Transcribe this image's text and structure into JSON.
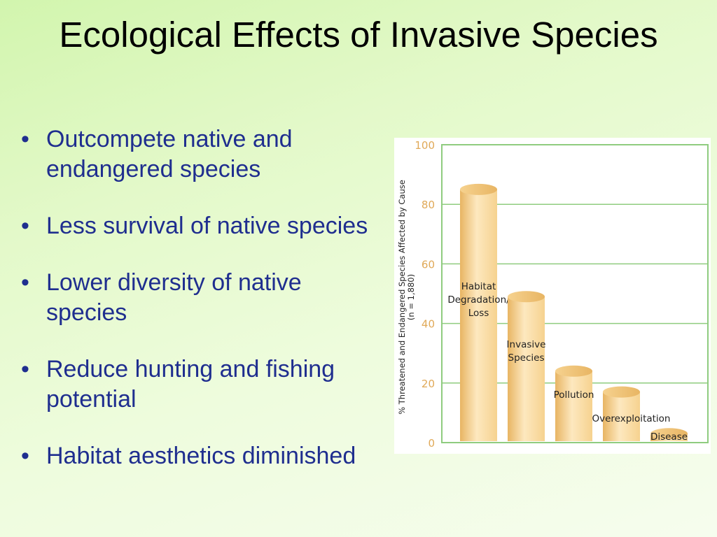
{
  "title": "Ecological Effects of Invasive Species",
  "bullets": [
    "Outcompete native and endangered species",
    "Less survival of native species",
    "Lower diversity of native species",
    "Reduce hunting and fishing potential",
    "Habitat aesthetics diminished"
  ],
  "chart_data": {
    "type": "bar",
    "categories": [
      "Habitat Degradation/ Loss",
      "Invasive Species",
      "Pollution",
      "Overexploitation",
      "Disease"
    ],
    "category_label_lines": [
      [
        "Habitat",
        "Degradation/",
        "Loss"
      ],
      [
        "Invasive",
        "Species"
      ],
      [
        "Pollution"
      ],
      [
        "Overexploitation"
      ],
      [
        "Disease"
      ]
    ],
    "values": [
      85,
      49,
      24,
      17,
      3
    ],
    "ylabel_lines": [
      "% Threatened and Endangered Species Affected by Cause",
      "(n = 1,880)"
    ],
    "ylim": [
      0,
      100
    ],
    "yticks": [
      0,
      20,
      40,
      60,
      80,
      100
    ],
    "grid": true,
    "colors": {
      "bar_light": "#fde8bf",
      "bar_mid": "#f6d28f",
      "bar_dark": "#e8b563",
      "grid": "#8fcc7f",
      "tick_text": "#e0a958",
      "text": "#222222"
    }
  }
}
